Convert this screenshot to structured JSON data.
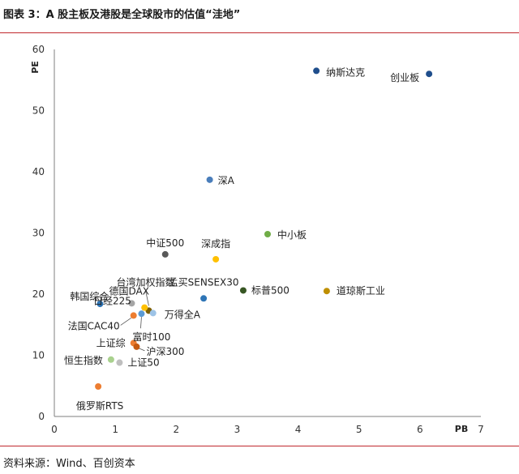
{
  "header": {
    "title": "图表 3：A 股主板及港股是全球股市的估值“洼地”"
  },
  "footer": {
    "source": "资料来源：Wind、百创资本"
  },
  "chart_data": {
    "type": "scatter",
    "xlabel": "PB",
    "ylabel": "PE",
    "xlim": [
      0,
      7
    ],
    "ylim": [
      0,
      60
    ],
    "x_ticks": [
      0,
      1,
      2,
      3,
      4,
      5,
      6,
      7
    ],
    "y_ticks": [
      0,
      10,
      20,
      30,
      40,
      50,
      60
    ],
    "grid": false,
    "legend": "none",
    "points": [
      {
        "label": "纳斯达克",
        "x": 4.3,
        "y": 56.5,
        "color": "#1f4e8c"
      },
      {
        "label": "创业板",
        "x": 6.15,
        "y": 56.0,
        "color": "#1f4e8c"
      },
      {
        "label": "深A",
        "x": 2.55,
        "y": 38.7,
        "color": "#4a7ebb"
      },
      {
        "label": "中小板",
        "x": 3.5,
        "y": 29.8,
        "color": "#70ad47"
      },
      {
        "label": "中证500",
        "x": 1.82,
        "y": 26.5,
        "color": "#595959"
      },
      {
        "label": "深成指",
        "x": 2.65,
        "y": 25.7,
        "color": "#ffc000"
      },
      {
        "label": "台湾加权指数",
        "x": 1.55,
        "y": 17.3,
        "color": "#7f6000"
      },
      {
        "label": "德国DAX",
        "x": 1.48,
        "y": 17.8,
        "color": "#ffc000"
      },
      {
        "label": "孟买SENSEX30",
        "x": 2.45,
        "y": 19.3,
        "color": "#2e75b6"
      },
      {
        "label": "标普500",
        "x": 3.1,
        "y": 20.6,
        "color": "#375623"
      },
      {
        "label": "道琼斯工业",
        "x": 4.47,
        "y": 20.5,
        "color": "#bf8f00"
      },
      {
        "label": "韩国综合",
        "x": 0.75,
        "y": 18.4,
        "color": "#2e75b6"
      },
      {
        "label": "日经225",
        "x": 1.27,
        "y": 18.5,
        "color": "#a5a5a5"
      },
      {
        "label": "万得全A",
        "x": 1.62,
        "y": 16.9,
        "color": "#9dc3e6"
      },
      {
        "label": "富时100",
        "x": 1.43,
        "y": 16.8,
        "color": "#5b9bd5"
      },
      {
        "label": "法国CAC40",
        "x": 1.3,
        "y": 16.5,
        "color": "#ed7d31"
      },
      {
        "label": "上证综",
        "x": 1.3,
        "y": 12.0,
        "color": "#ed7d31"
      },
      {
        "label": "沪深300",
        "x": 1.35,
        "y": 11.4,
        "color": "#c55a11"
      },
      {
        "label": "恒生指数",
        "x": 0.93,
        "y": 9.3,
        "color": "#a9d18e"
      },
      {
        "label": "上证50",
        "x": 1.07,
        "y": 8.8,
        "color": "#bfbfbf"
      },
      {
        "label": "俄罗斯RTS",
        "x": 0.72,
        "y": 4.9,
        "color": "#ed7d31"
      }
    ]
  }
}
